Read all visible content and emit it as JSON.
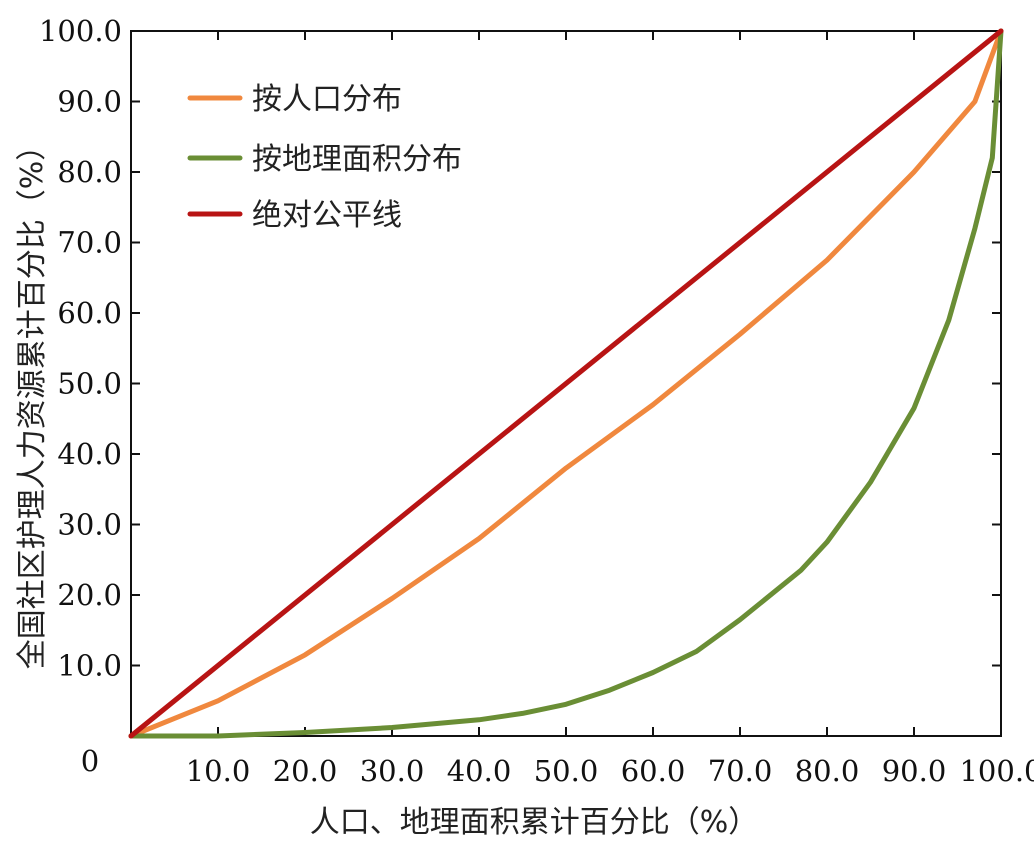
{
  "chart_data": {
    "type": "line",
    "title": "",
    "xlabel": "人口、地理面积累计百分比（%）",
    "ylabel": "全国社区护理人力资源累计百分比（%）",
    "xlim": [
      0,
      100
    ],
    "ylim": [
      0,
      100
    ],
    "origin_label": "0",
    "x_ticks": [
      10,
      20,
      30,
      40,
      50,
      60,
      70,
      80,
      90,
      100
    ],
    "x_tick_labels": [
      "10.0",
      "20.0",
      "30.0",
      "40.0",
      "50.0",
      "60.0",
      "70.0",
      "80.0",
      "90.0",
      "100.0"
    ],
    "y_ticks": [
      10,
      20,
      30,
      40,
      50,
      60,
      70,
      80,
      90,
      100
    ],
    "y_tick_labels": [
      "10.0",
      "20.0",
      "30.0",
      "40.0",
      "50.0",
      "60.0",
      "70.0",
      "80.0",
      "90.0",
      "100.0"
    ],
    "legend_position": "top-left",
    "series": [
      {
        "name": "按人口分布",
        "color": "#F0883E",
        "x": [
          0,
          3,
          10,
          20,
          30,
          40,
          50,
          60,
          70,
          80,
          90,
          97,
          100
        ],
        "y": [
          0,
          1.5,
          5,
          11.5,
          19.5,
          28,
          38,
          47,
          57,
          67.5,
          80,
          90,
          100
        ]
      },
      {
        "name": "按地理面积分布",
        "color": "#6A8E35",
        "x": [
          0,
          10,
          20,
          30,
          40,
          45,
          50,
          55,
          60,
          65,
          70,
          77,
          80,
          85,
          90,
          94,
          97,
          99,
          100
        ],
        "y": [
          0,
          0,
          0.5,
          1.2,
          2.3,
          3.2,
          4.5,
          6.5,
          9,
          12,
          16.5,
          23.5,
          27.5,
          36,
          46.5,
          59,
          72,
          82,
          100
        ]
      },
      {
        "name": "绝对公平线",
        "color": "#B81414",
        "x": [
          0,
          100
        ],
        "y": [
          0,
          100
        ]
      }
    ]
  }
}
